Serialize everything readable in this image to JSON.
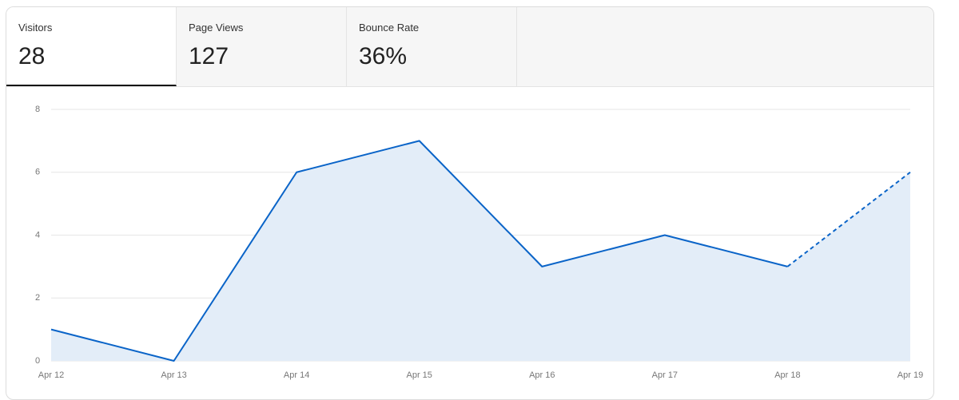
{
  "tabs": [
    {
      "label": "Visitors",
      "value": "28"
    },
    {
      "label": "Page Views",
      "value": "127"
    },
    {
      "label": "Bounce Rate",
      "value": "36%"
    }
  ],
  "chart_data": {
    "type": "line",
    "categories": [
      "Apr 12",
      "Apr 13",
      "Apr 14",
      "Apr 15",
      "Apr 16",
      "Apr 17",
      "Apr 18",
      "Apr 19"
    ],
    "values": [
      1,
      0,
      6,
      7,
      3,
      4,
      3,
      6
    ],
    "color": "#0a64c8",
    "area_color": "#e3edf8",
    "dashed_after": "Apr 18",
    "ylim": [
      0,
      8
    ],
    "yticks": [
      0,
      2,
      4,
      6,
      8
    ],
    "grid": true
  }
}
